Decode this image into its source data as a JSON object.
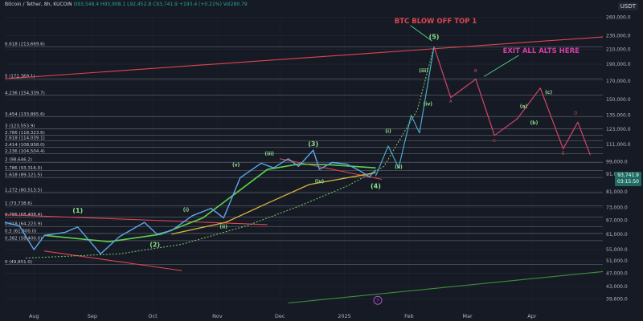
{
  "header": {
    "symbol": "Bitcoin / Tether, 8h, KUCOIN",
    "open": "O93,548.4",
    "high": "H93,908.1",
    "low": "L92,452.8",
    "close": "C93,741.9",
    "change": "+193.4 (+0.21%)",
    "volume": "Vol280.79"
  },
  "currency": "USDT",
  "last_price": {
    "value": "93,741.9",
    "countdown": "03:15:50"
  },
  "colors": {
    "background": "#161a24",
    "fib_line": "#c8ccd6",
    "trend_red": "#e0454f",
    "ma_green": "#59d24c",
    "ma_yellow": "#d6b33c",
    "wave_label": "#8ee08b",
    "projection": "#d5456b",
    "annotation": "#e0454f",
    "exit_text": "#d63fa3"
  },
  "chart_data": {
    "type": "line",
    "title": "",
    "y_axis_scale": "log",
    "ylim": [
      37000,
      265000
    ],
    "y_ticks": [
      "260,000.0",
      "230,000.0",
      "210,000.0",
      "190,000.0",
      "170,000.0",
      "150,000.0",
      "135,000.0",
      "123,000.0",
      "111,000.0",
      "99,000.0",
      "91,000.0",
      "81,000.0",
      "73,000.0",
      "67,000.0",
      "61,000.0",
      "55,000.0",
      "51,000.0",
      "47,000.0",
      "43,000.0",
      "39,600.0"
    ],
    "x_ticks": [
      "Aug",
      "Sep",
      "Oct",
      "Nov",
      "Dec",
      "2025",
      "Feb",
      "Mar",
      "Apr"
    ],
    "fib_levels": [
      {
        "label": "6.618 (213,669.6)",
        "value": 213669.6
      },
      {
        "label": "5 (172,369.1)",
        "value": 172369.1
      },
      {
        "label": "4.236 (154,339.7)",
        "value": 154339.7
      },
      {
        "label": "3.454 (133,865.6)",
        "value": 133865.6
      },
      {
        "label": "3 (123,553.9)",
        "value": 123553.9
      },
      {
        "label": "2.786 (118,323.6)",
        "value": 118323.6
      },
      {
        "label": "2.618 (114,039.1)",
        "value": 114039.1
      },
      {
        "label": "2.414 (108,958.0)",
        "value": 108958.0
      },
      {
        "label": "2.236 (104,504.4)",
        "value": 104504.4
      },
      {
        "label": "2 (98,646.2)",
        "value": 98646.2
      },
      {
        "label": "1.786 (93,316.0)",
        "value": 93316.0
      },
      {
        "label": "1.618 (89,121.5)",
        "value": 89121.5
      },
      {
        "label": "1.272 (80,513.5)",
        "value": 80513.5
      },
      {
        "label": "1 (73,738.6)",
        "value": 73738.6
      },
      {
        "label": "0.786 (68,408.4)",
        "value": 68408.4
      },
      {
        "label": "0.618 (64,223.9)",
        "value": 64223.9
      },
      {
        "label": "0.5 (61,300.0)",
        "value": 61300.0
      },
      {
        "label": "0.382 (58,400.0)",
        "value": 58400.0
      },
      {
        "label": "0 (49,851.0)",
        "value": 49851.0
      }
    ],
    "price_series": {
      "x": [
        "2024-07-22",
        "2024-07-29",
        "2024-08-05",
        "2024-08-10",
        "2024-08-20",
        "2024-08-26",
        "2024-09-06",
        "2024-09-15",
        "2024-09-27",
        "2024-10-03",
        "2024-10-10",
        "2024-10-20",
        "2024-10-29",
        "2024-11-04",
        "2024-11-12",
        "2024-11-22",
        "2024-11-28",
        "2024-12-05",
        "2024-12-10",
        "2024-12-17",
        "2024-12-20",
        "2024-12-26",
        "2025-01-02",
        "2025-01-08",
        "2025-01-13",
        "2025-01-16"
      ],
      "y": [
        66000,
        64500,
        55000,
        60500,
        61800,
        64000,
        53500,
        60000,
        66000,
        61000,
        62500,
        69000,
        72500,
        68000,
        89000,
        98000,
        95000,
        101000,
        96000,
        107000,
        94000,
        98500,
        97500,
        93500,
        89500,
        93741.9
      ]
    },
    "ma_fast": {
      "x": [
        "2024-08-10",
        "2024-09-10",
        "2024-10-05",
        "2024-10-25",
        "2024-11-12",
        "2024-11-25",
        "2024-12-10",
        "2024-12-25",
        "2025-01-16"
      ],
      "y": [
        60500,
        58000,
        61000,
        68000,
        82000,
        94000,
        97500,
        97000,
        95000
      ]
    },
    "ma_slow": {
      "x": [
        "2024-10-10",
        "2024-11-05",
        "2024-11-25",
        "2024-12-15",
        "2025-01-05",
        "2025-01-16"
      ],
      "y": [
        61000,
        66000,
        75000,
        85000,
        89500,
        92000
      ]
    },
    "wave_path": {
      "x": [
        "2025-01-16",
        "2025-01-22",
        "2025-01-27",
        "2025-02-02",
        "2025-02-06",
        "2025-02-13"
      ],
      "y": [
        90000,
        110000,
        95000,
        135000,
        120000,
        213669.6
      ]
    },
    "projection_path": {
      "x": [
        "2025-02-13",
        "2025-02-21",
        "2025-03-05",
        "2025-03-14",
        "2025-03-25",
        "2025-04-05",
        "2025-04-16",
        "2025-04-23",
        "2025-04-29"
      ],
      "y": [
        213669.6,
        152000,
        172000,
        118000,
        132000,
        162000,
        108000,
        129000,
        103500
      ]
    },
    "dotted_curve": {
      "x": [
        "2024-08-01",
        "2024-09-15",
        "2024-10-15",
        "2024-11-15",
        "2024-12-10",
        "2025-01-02",
        "2025-01-20",
        "2025-02-05",
        "2025-02-13"
      ],
      "y": [
        52000,
        53500,
        57000,
        64500,
        73500,
        84000,
        96000,
        140000,
        213669.6
      ]
    },
    "trendlines": [
      {
        "name": "red-upper",
        "x": [
          "2024-07-22",
          "2025-05-05"
        ],
        "y": [
          172369.1,
          228000
        ]
      },
      {
        "name": "red-lower-top",
        "x": [
          "2024-07-22",
          "2024-11-25"
        ],
        "y": [
          69500,
          65000
        ]
      },
      {
        "name": "red-lower-bottom",
        "x": [
          "2024-08-10",
          "2024-10-15"
        ],
        "y": [
          54500,
          47800
        ]
      },
      {
        "name": "red-range",
        "x": [
          "2024-12-01",
          "2025-01-19"
        ],
        "y": [
          101000,
          88000
        ]
      },
      {
        "name": "green-base",
        "x": [
          "2024-12-05",
          "2025-05-05"
        ],
        "y": [
          38500,
          47500
        ]
      }
    ],
    "wave_labels": [
      {
        "text": "(1)",
        "x": "2024-08-26",
        "y": 70500,
        "group": "major"
      },
      {
        "text": "(2)",
        "x": "2024-10-02",
        "y": 56000,
        "group": "major"
      },
      {
        "text": "(3)",
        "x": "2024-12-17",
        "y": 110000,
        "group": "major"
      },
      {
        "text": "(4)",
        "x": "2025-01-16",
        "y": 83000,
        "group": "major"
      },
      {
        "text": "(5)",
        "x": "2025-02-13",
        "y": 225000,
        "group": "major"
      },
      {
        "text": "(i)",
        "x": "2024-10-17",
        "y": 71000,
        "group": "minor"
      },
      {
        "text": "(ii)",
        "x": "2024-11-04",
        "y": 63500,
        "group": "minor"
      },
      {
        "text": "(iii)",
        "x": "2024-11-26",
        "y": 103500,
        "group": "minor"
      },
      {
        "text": "(iv)",
        "x": "2024-12-20",
        "y": 86000,
        "group": "minor"
      },
      {
        "text": "(v)",
        "x": "2024-11-10",
        "y": 96000,
        "group": "minor"
      },
      {
        "text": "(i)",
        "x": "2025-01-22",
        "y": 120000,
        "group": "minor"
      },
      {
        "text": "(ii)",
        "x": "2025-01-27",
        "y": 94500,
        "group": "minor"
      },
      {
        "text": "(iii)",
        "x": "2025-02-08",
        "y": 180000,
        "group": "minor"
      },
      {
        "text": "(iv)",
        "x": "2025-02-10",
        "y": 144000,
        "group": "minor"
      },
      {
        "text": "(a)",
        "x": "2025-03-28",
        "y": 142000,
        "group": "minor"
      },
      {
        "text": "(b)",
        "x": "2025-04-02",
        "y": 127000,
        "group": "minor"
      },
      {
        "text": "(c)",
        "x": "2025-04-09",
        "y": 156000,
        "group": "minor"
      }
    ],
    "small_labels": [
      {
        "text": "A",
        "x": "2025-02-21",
        "y": 147000
      },
      {
        "text": "B",
        "x": "2025-03-05",
        "y": 180000
      },
      {
        "text": "C",
        "x": "2025-03-14",
        "y": 113000
      },
      {
        "text": "D",
        "x": "2025-04-22",
        "y": 136000
      },
      {
        "text": "E",
        "x": "2025-04-16",
        "y": 104000
      }
    ],
    "annotations": [
      {
        "text": "BTC BLOW OFF TOP 1",
        "x": "2025-01-25",
        "y": 250000,
        "arrow_to": {
          "x": "2025-02-12",
          "y": 222000
        }
      },
      {
        "text": "EXIT ALL ALTS HERE",
        "x": "2025-03-18",
        "y": 205000,
        "arrow_to": {
          "x": "2025-03-09",
          "y": 175000
        }
      }
    ],
    "bottom_marker": {
      "text": "?",
      "x": "2025-01-17",
      "y": 39200
    }
  }
}
